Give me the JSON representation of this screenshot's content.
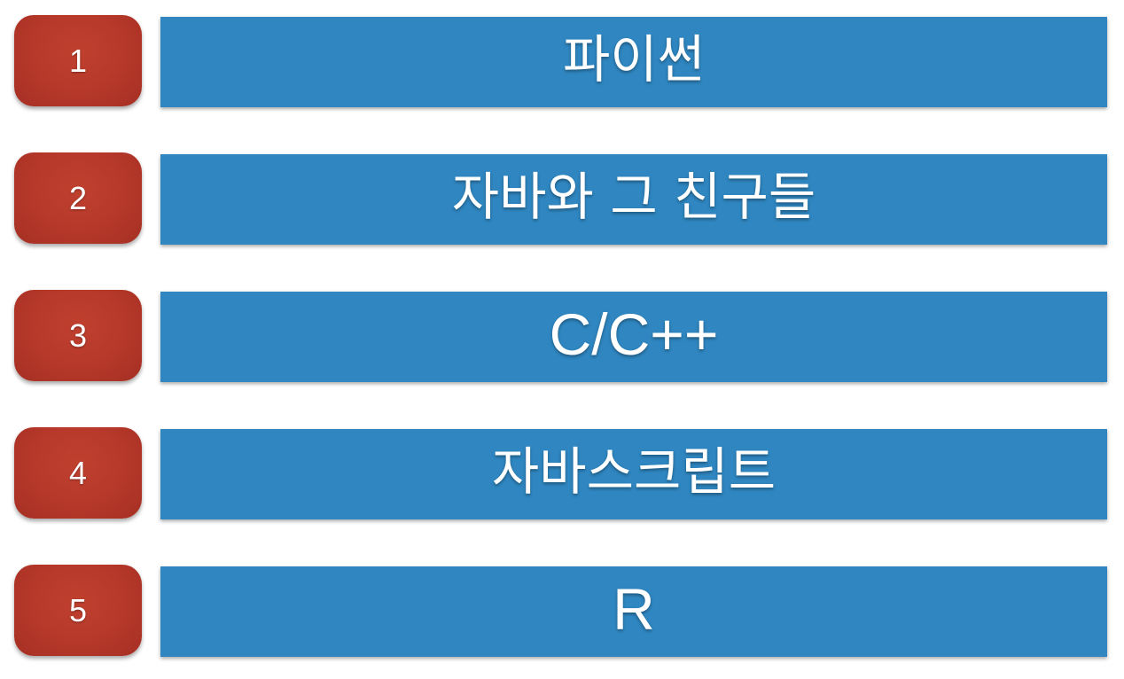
{
  "colors": {
    "badge": "#b5382a",
    "bar": "#2f86c0",
    "text": "#ffffff"
  },
  "items": [
    {
      "number": "1",
      "label": "파이썬"
    },
    {
      "number": "2",
      "label": "자바와 그 친구들"
    },
    {
      "number": "3",
      "label": "C/C++"
    },
    {
      "number": "4",
      "label": "자바스크립트"
    },
    {
      "number": "5",
      "label": "R"
    }
  ]
}
